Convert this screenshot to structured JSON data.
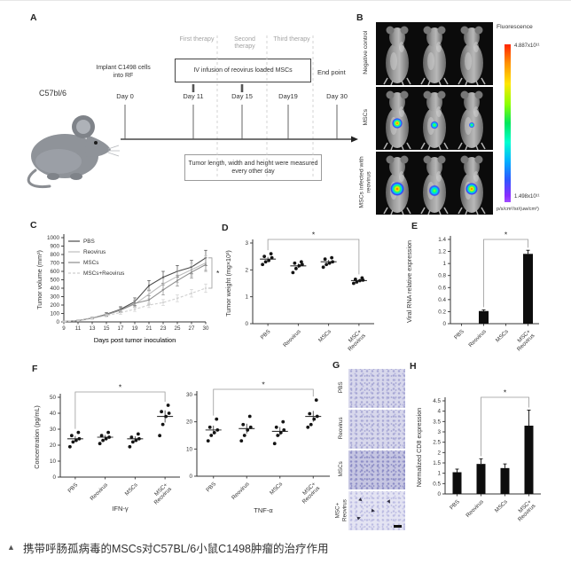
{
  "page": {
    "caption_marker": "▲",
    "caption": "携带呼肠孤病毒的MSCs对C57BL/6小鼠C1498肿瘤的治疗作用"
  },
  "panel_labels": {
    "A": "A",
    "B": "B",
    "C": "C",
    "D": "D",
    "E": "E",
    "F": "F",
    "G": "G",
    "H": "H"
  },
  "panelA": {
    "strain": "C57bl/6",
    "implant": "Implant C1498 cells into RF",
    "infusion_box": "IV infusion of reovirus loaded MSCs",
    "end_point": "End point",
    "therapies": [
      "First therapy",
      "Second therapy",
      "Third therapy"
    ],
    "days": [
      "Day 0",
      "Day 11",
      "Day 15",
      "Day19",
      "Day 30"
    ],
    "measure_box": "Tumor length, width and height were measured every other day"
  },
  "panelB": {
    "row_labels": [
      "Negative control",
      "MSCs",
      "MSCs infected with reovirus"
    ],
    "signals": [
      "none",
      "weak",
      "strong"
    ],
    "colorbar": {
      "title": "Fluorescence",
      "max": "4.887x10¹¹",
      "min": "1.498x10¹¹",
      "unit": "p/s/cm²/sr/(uw/cm²)"
    }
  },
  "panelG": {
    "rows": [
      "PBS",
      "Reovirus",
      "MSCs",
      "MSC+\nReovirus"
    ],
    "shades": [
      "mid",
      "mid",
      "dark",
      "light"
    ],
    "arrows_in_last_row": 4
  },
  "chart_data": [
    {
      "id": "C",
      "type": "line",
      "xlabel": "Days post tumor inoculation",
      "ylabel": "Tumor volume (mm³)",
      "x": [
        9,
        11,
        13,
        15,
        17,
        19,
        21,
        23,
        25,
        27,
        30
      ],
      "ylim": [
        0,
        1000
      ],
      "ytick": 100,
      "grid": false,
      "legend_position": "top-left",
      "series": [
        {
          "name": "PBS",
          "color": "#4a4a4a",
          "dash": null,
          "values": [
            5,
            15,
            45,
            90,
            150,
            240,
            430,
            530,
            600,
            650,
            760
          ],
          "err": [
            3,
            5,
            10,
            20,
            30,
            45,
            60,
            70,
            70,
            80,
            90
          ]
        },
        {
          "name": "Reovirus",
          "color": "#bdbdbd",
          "dash": null,
          "values": [
            5,
            15,
            45,
            85,
            140,
            210,
            330,
            450,
            540,
            620,
            700
          ],
          "err": [
            3,
            5,
            10,
            18,
            28,
            40,
            55,
            65,
            70,
            75,
            85
          ]
        },
        {
          "name": "MSCs",
          "color": "#8c8c8c",
          "dash": null,
          "values": [
            5,
            15,
            45,
            85,
            140,
            220,
            260,
            380,
            490,
            590,
            680
          ],
          "err": [
            3,
            5,
            10,
            18,
            28,
            40,
            50,
            60,
            65,
            70,
            80
          ]
        },
        {
          "name": "MSCs+Reovirus",
          "color": "#cfcfcf",
          "dash": "3,2",
          "values": [
            5,
            12,
            40,
            75,
            110,
            150,
            200,
            230,
            280,
            340,
            400
          ],
          "err": [
            3,
            5,
            10,
            15,
            20,
            25,
            30,
            35,
            40,
            45,
            50
          ]
        }
      ],
      "sig": {
        "type": "right-bracket",
        "label": "*",
        "from_series": 0,
        "to_series": 3
      }
    },
    {
      "id": "D",
      "type": "scatter",
      "ylabel": "Tumor weight (mg×10³)",
      "categories": [
        [
          "PBS"
        ],
        [
          "Reovirus"
        ],
        [
          "MSCs"
        ],
        [
          "MSC+",
          "Reovirus"
        ]
      ],
      "ylim": [
        0,
        3
      ],
      "ytick": 1,
      "groups": [
        {
          "points": [
            2.2,
            2.3,
            2.35,
            2.45,
            2.5,
            2.6
          ],
          "mean": 2.4
        },
        {
          "points": [
            1.9,
            2.05,
            2.15,
            2.2,
            2.25,
            2.3
          ],
          "mean": 2.15
        },
        {
          "points": [
            2.1,
            2.2,
            2.25,
            2.3,
            2.4,
            2.45
          ],
          "mean": 2.3
        },
        {
          "points": [
            1.5,
            1.55,
            1.6,
            1.62,
            1.65,
            1.7
          ],
          "mean": 1.6
        }
      ],
      "sig": {
        "label": "*",
        "from": 0,
        "to": 3
      }
    },
    {
      "id": "E",
      "type": "bar",
      "ylabel": "Viral RNA relative expression",
      "categories": [
        [
          "PBS"
        ],
        [
          "Reovirus"
        ],
        [
          "MSCs"
        ],
        [
          "MSC+",
          "Reovirus"
        ]
      ],
      "ylim": [
        0,
        1.4
      ],
      "ytick": 0.2,
      "values": [
        0,
        0.21,
        0,
        1.16
      ],
      "err": [
        0,
        0.02,
        0,
        0.06
      ],
      "sig": {
        "label": "*",
        "from": 1,
        "to": 3
      }
    },
    {
      "id": "F1",
      "type": "scatter",
      "ylabel": "Concentration (pg/mL)",
      "xlabel": "IFN-γ",
      "categories": [
        [
          "PBS"
        ],
        [
          "Reovirus"
        ],
        [
          "MSCs"
        ],
        [
          "MSC+",
          "Reovirus"
        ]
      ],
      "ylim": [
        0,
        50
      ],
      "ytick": 10,
      "groups": [
        {
          "points": [
            19,
            22,
            23,
            24,
            26,
            28
          ],
          "mean": 24
        },
        {
          "points": [
            21,
            23,
            24,
            25,
            26,
            28
          ],
          "mean": 25
        },
        {
          "points": [
            19,
            22,
            23,
            24,
            25,
            27
          ],
          "mean": 24
        },
        {
          "points": [
            26,
            33,
            38,
            40,
            41,
            45
          ],
          "mean": 38
        }
      ],
      "sig": {
        "label": "*",
        "from": 0,
        "to": 3
      }
    },
    {
      "id": "F2",
      "type": "scatter",
      "ylabel": "",
      "xlabel": "TNF-α",
      "categories": [
        [
          "PBS"
        ],
        [
          "Reovirus"
        ],
        [
          "MSCs"
        ],
        [
          "MSC+",
          "Reovirus"
        ]
      ],
      "ylim": [
        0,
        30
      ],
      "ytick": 10,
      "groups": [
        {
          "points": [
            13,
            15,
            16,
            17,
            18,
            21
          ],
          "mean": 17
        },
        {
          "points": [
            13,
            15,
            17,
            18,
            19,
            22
          ],
          "mean": 17.5
        },
        {
          "points": [
            12,
            15,
            16,
            17,
            18,
            20
          ],
          "mean": 16.5
        },
        {
          "points": [
            18,
            19,
            21,
            22,
            23,
            28
          ],
          "mean": 22
        }
      ],
      "sig": {
        "label": "*",
        "from": 0,
        "to": 3
      }
    },
    {
      "id": "H",
      "type": "bar",
      "ylabel": "Normalized CD8 expression",
      "categories": [
        [
          "PBS"
        ],
        [
          "Reovirus"
        ],
        [
          "MSCs"
        ],
        [
          "MSC+",
          "Reovirus"
        ]
      ],
      "ylim": [
        0,
        4.5
      ],
      "ytick": 0.5,
      "values": [
        1.05,
        1.45,
        1.25,
        3.3
      ],
      "err": [
        0.15,
        0.25,
        0.2,
        0.75
      ],
      "sig": {
        "label": "*",
        "from": 1,
        "to": 3
      }
    }
  ]
}
